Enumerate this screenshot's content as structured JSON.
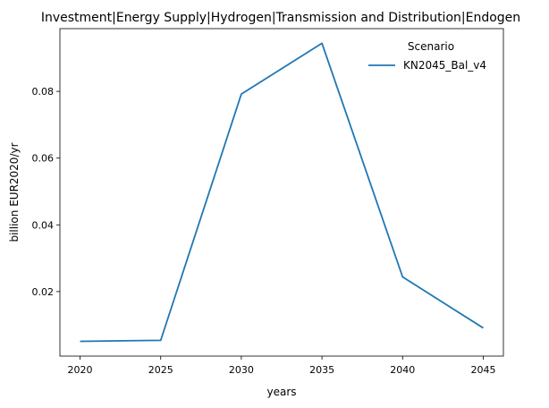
{
  "chart_data": {
    "type": "line",
    "title": "Investment|Energy Supply|Hydrogen|Transmission and Distribution|Endogen",
    "xlabel": "years",
    "ylabel": "billion EUR2020/yr",
    "x": [
      2020,
      2025,
      2030,
      2035,
      2040,
      2045
    ],
    "xlim": [
      2018.75,
      2046.25
    ],
    "ylim": [
      0.00067,
      0.0988
    ],
    "xticks": [
      2020,
      2025,
      2030,
      2035,
      2040,
      2045
    ],
    "yticks": [
      0.02,
      0.04,
      0.06,
      0.08
    ],
    "ytick_labels": [
      "0.02",
      "0.04",
      "0.06",
      "0.08"
    ],
    "grid": false,
    "legend": {
      "title": "Scenario",
      "placement": "top-right"
    },
    "series": [
      {
        "name": "KN2045_Bal_v4",
        "color": "#1f77b4",
        "values": [
          0.0051,
          0.0054,
          0.0792,
          0.0944,
          0.0244,
          0.0091
        ]
      }
    ]
  }
}
